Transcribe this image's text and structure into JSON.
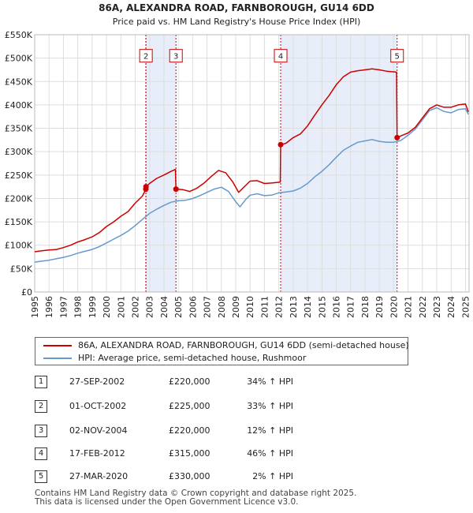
{
  "chart_data": {
    "type": "line",
    "title": "86A, ALEXANDRA ROAD, FARNBOROUGH, GU14 6DD",
    "subtitle": "Price paid vs. HM Land Registry's House Price Index (HPI)",
    "ylim": [
      0,
      550000
    ],
    "xlim": [
      1995,
      2025.25
    ],
    "y_ticks": [
      0,
      50000,
      100000,
      150000,
      200000,
      250000,
      300000,
      350000,
      400000,
      450000,
      500000,
      550000
    ],
    "y_tick_labels": [
      "£0",
      "£50K",
      "£100K",
      "£150K",
      "£200K",
      "£250K",
      "£300K",
      "£350K",
      "£400K",
      "£450K",
      "£500K",
      "£550K"
    ],
    "x_ticks": [
      1995,
      1996,
      1997,
      1998,
      1999,
      2000,
      2001,
      2002,
      2003,
      2004,
      2005,
      2006,
      2007,
      2008,
      2009,
      2010,
      2011,
      2012,
      2013,
      2014,
      2015,
      2016,
      2017,
      2018,
      2019,
      2020,
      2021,
      2022,
      2023,
      2024,
      2025
    ],
    "x_tick_labels": [
      "1995",
      "1996",
      "1997",
      "1998",
      "1999",
      "2000",
      "2001",
      "2002",
      "2003",
      "2004",
      "2005",
      "2006",
      "2007",
      "2008",
      "2009",
      "2010",
      "2011",
      "2012",
      "2013",
      "2014",
      "2015",
      "2016",
      "2017",
      "2018",
      "2019",
      "2020",
      "2021",
      "2022",
      "2023",
      "2024",
      "2025"
    ],
    "series": [
      {
        "name": "86A, ALEXANDRA ROAD, FARNBOROUGH, GU14 6DD (semi-detached house)",
        "color": "#cc0000",
        "points": [
          [
            1995.0,
            86000
          ],
          [
            1995.5,
            88000
          ],
          [
            1996.0,
            90000
          ],
          [
            1996.5,
            91000
          ],
          [
            1997.0,
            95000
          ],
          [
            1997.5,
            100000
          ],
          [
            1998.0,
            107000
          ],
          [
            1998.5,
            112000
          ],
          [
            1999.0,
            118000
          ],
          [
            1999.5,
            127000
          ],
          [
            2000.0,
            140000
          ],
          [
            2000.5,
            150000
          ],
          [
            2001.0,
            162000
          ],
          [
            2001.5,
            172000
          ],
          [
            2002.0,
            190000
          ],
          [
            2002.5,
            205000
          ],
          [
            2002.75,
            220000
          ],
          [
            2002.76,
            225000
          ],
          [
            2003.0,
            232000
          ],
          [
            2003.5,
            243000
          ],
          [
            2004.0,
            250000
          ],
          [
            2004.5,
            258000
          ],
          [
            2004.8,
            262000
          ],
          [
            2004.84,
            220000
          ],
          [
            2005.3,
            219000
          ],
          [
            2005.8,
            215000
          ],
          [
            2006.3,
            222000
          ],
          [
            2006.8,
            233000
          ],
          [
            2007.3,
            247000
          ],
          [
            2007.8,
            260000
          ],
          [
            2008.3,
            255000
          ],
          [
            2008.8,
            235000
          ],
          [
            2009.2,
            213000
          ],
          [
            2009.6,
            225000
          ],
          [
            2010.0,
            237000
          ],
          [
            2010.5,
            238000
          ],
          [
            2011.0,
            232000
          ],
          [
            2011.5,
            233000
          ],
          [
            2012.1,
            235000
          ],
          [
            2012.13,
            315000
          ],
          [
            2012.5,
            318000
          ],
          [
            2013.0,
            330000
          ],
          [
            2013.5,
            338000
          ],
          [
            2014.0,
            355000
          ],
          [
            2014.5,
            378000
          ],
          [
            2015.0,
            400000
          ],
          [
            2015.5,
            420000
          ],
          [
            2016.0,
            443000
          ],
          [
            2016.5,
            460000
          ],
          [
            2017.0,
            470000
          ],
          [
            2017.5,
            473000
          ],
          [
            2018.0,
            475000
          ],
          [
            2018.5,
            477000
          ],
          [
            2019.0,
            475000
          ],
          [
            2019.5,
            472000
          ],
          [
            2020.2,
            470000
          ],
          [
            2020.24,
            330000
          ],
          [
            2020.6,
            335000
          ],
          [
            2021.0,
            340000
          ],
          [
            2021.5,
            352000
          ],
          [
            2022.0,
            372000
          ],
          [
            2022.5,
            392000
          ],
          [
            2023.0,
            400000
          ],
          [
            2023.5,
            395000
          ],
          [
            2024.0,
            395000
          ],
          [
            2024.5,
            400000
          ],
          [
            2025.0,
            402000
          ],
          [
            2025.2,
            385000
          ]
        ]
      },
      {
        "name": "HPI: Average price, semi-detached house, Rushmoor",
        "color": "#6699cc",
        "points": [
          [
            1995.0,
            64000
          ],
          [
            1995.5,
            66000
          ],
          [
            1996.0,
            68000
          ],
          [
            1996.5,
            71000
          ],
          [
            1997.0,
            74000
          ],
          [
            1997.5,
            78000
          ],
          [
            1998.0,
            83000
          ],
          [
            1998.5,
            87000
          ],
          [
            1999.0,
            91000
          ],
          [
            1999.5,
            97000
          ],
          [
            2000.0,
            105000
          ],
          [
            2000.5,
            113000
          ],
          [
            2001.0,
            121000
          ],
          [
            2001.5,
            130000
          ],
          [
            2002.0,
            142000
          ],
          [
            2002.5,
            155000
          ],
          [
            2003.0,
            168000
          ],
          [
            2003.5,
            177000
          ],
          [
            2004.0,
            185000
          ],
          [
            2004.5,
            192000
          ],
          [
            2005.0,
            195000
          ],
          [
            2005.5,
            196000
          ],
          [
            2006.0,
            200000
          ],
          [
            2006.5,
            206000
          ],
          [
            2007.0,
            213000
          ],
          [
            2007.5,
            220000
          ],
          [
            2008.0,
            224000
          ],
          [
            2008.5,
            215000
          ],
          [
            2009.0,
            193000
          ],
          [
            2009.3,
            182000
          ],
          [
            2009.7,
            198000
          ],
          [
            2010.0,
            207000
          ],
          [
            2010.5,
            210000
          ],
          [
            2011.0,
            206000
          ],
          [
            2011.5,
            207000
          ],
          [
            2012.0,
            212000
          ],
          [
            2012.5,
            214000
          ],
          [
            2013.0,
            216000
          ],
          [
            2013.5,
            222000
          ],
          [
            2014.0,
            232000
          ],
          [
            2014.5,
            246000
          ],
          [
            2015.0,
            258000
          ],
          [
            2015.5,
            272000
          ],
          [
            2016.0,
            288000
          ],
          [
            2016.5,
            303000
          ],
          [
            2017.0,
            312000
          ],
          [
            2017.5,
            320000
          ],
          [
            2018.0,
            323000
          ],
          [
            2018.5,
            326000
          ],
          [
            2019.0,
            322000
          ],
          [
            2019.5,
            320000
          ],
          [
            2020.0,
            320000
          ],
          [
            2020.5,
            324000
          ],
          [
            2021.0,
            335000
          ],
          [
            2021.5,
            348000
          ],
          [
            2022.0,
            368000
          ],
          [
            2022.5,
            388000
          ],
          [
            2023.0,
            394000
          ],
          [
            2023.5,
            386000
          ],
          [
            2024.0,
            383000
          ],
          [
            2024.5,
            390000
          ],
          [
            2025.0,
            392000
          ],
          [
            2025.2,
            380000
          ]
        ]
      }
    ],
    "sales": [
      {
        "label": "1",
        "x": 2002.74,
        "y": 220000
      },
      {
        "label": "2",
        "x": 2002.75,
        "y": 225000
      },
      {
        "label": "3",
        "x": 2004.84,
        "y": 220000
      },
      {
        "label": "4",
        "x": 2012.13,
        "y": 315000
      },
      {
        "label": "5",
        "x": 2020.24,
        "y": 330000
      }
    ],
    "marker_boxes": [
      {
        "label": "2",
        "x": 2002.75,
        "y": 505000
      },
      {
        "label": "3",
        "x": 2004.84,
        "y": 505000
      },
      {
        "label": "4",
        "x": 2012.13,
        "y": 505000
      },
      {
        "label": "5",
        "x": 2020.24,
        "y": 505000
      }
    ],
    "shaded_spans": [
      [
        2002.74,
        2004.84
      ],
      [
        2012.13,
        2020.24
      ]
    ]
  },
  "legend": {
    "property_label": "86A, ALEXANDRA ROAD, FARNBOROUGH, GU14 6DD (semi-detached house)",
    "hpi_label": "HPI: Average price, semi-detached house, Rushmoor",
    "property_color": "#cc0000",
    "hpi_color": "#6699cc"
  },
  "transactions": [
    {
      "num": "1",
      "date": "27-SEP-2002",
      "price": "£220,000",
      "hpi": "34% ↑ HPI"
    },
    {
      "num": "2",
      "date": "01-OCT-2002",
      "price": "£225,000",
      "hpi": "33% ↑ HPI"
    },
    {
      "num": "3",
      "date": "02-NOV-2004",
      "price": "£220,000",
      "hpi": "12% ↑ HPI"
    },
    {
      "num": "4",
      "date": "17-FEB-2012",
      "price": "£315,000",
      "hpi": "46% ↑ HPI"
    },
    {
      "num": "5",
      "date": "27-MAR-2020",
      "price": "£330,000",
      "hpi": "2% ↑ HPI"
    }
  ],
  "footer": {
    "line1": "Contains HM Land Registry data © Crown copyright and database right 2025.",
    "line2": "This data is licensed under the Open Government Licence v3.0."
  }
}
